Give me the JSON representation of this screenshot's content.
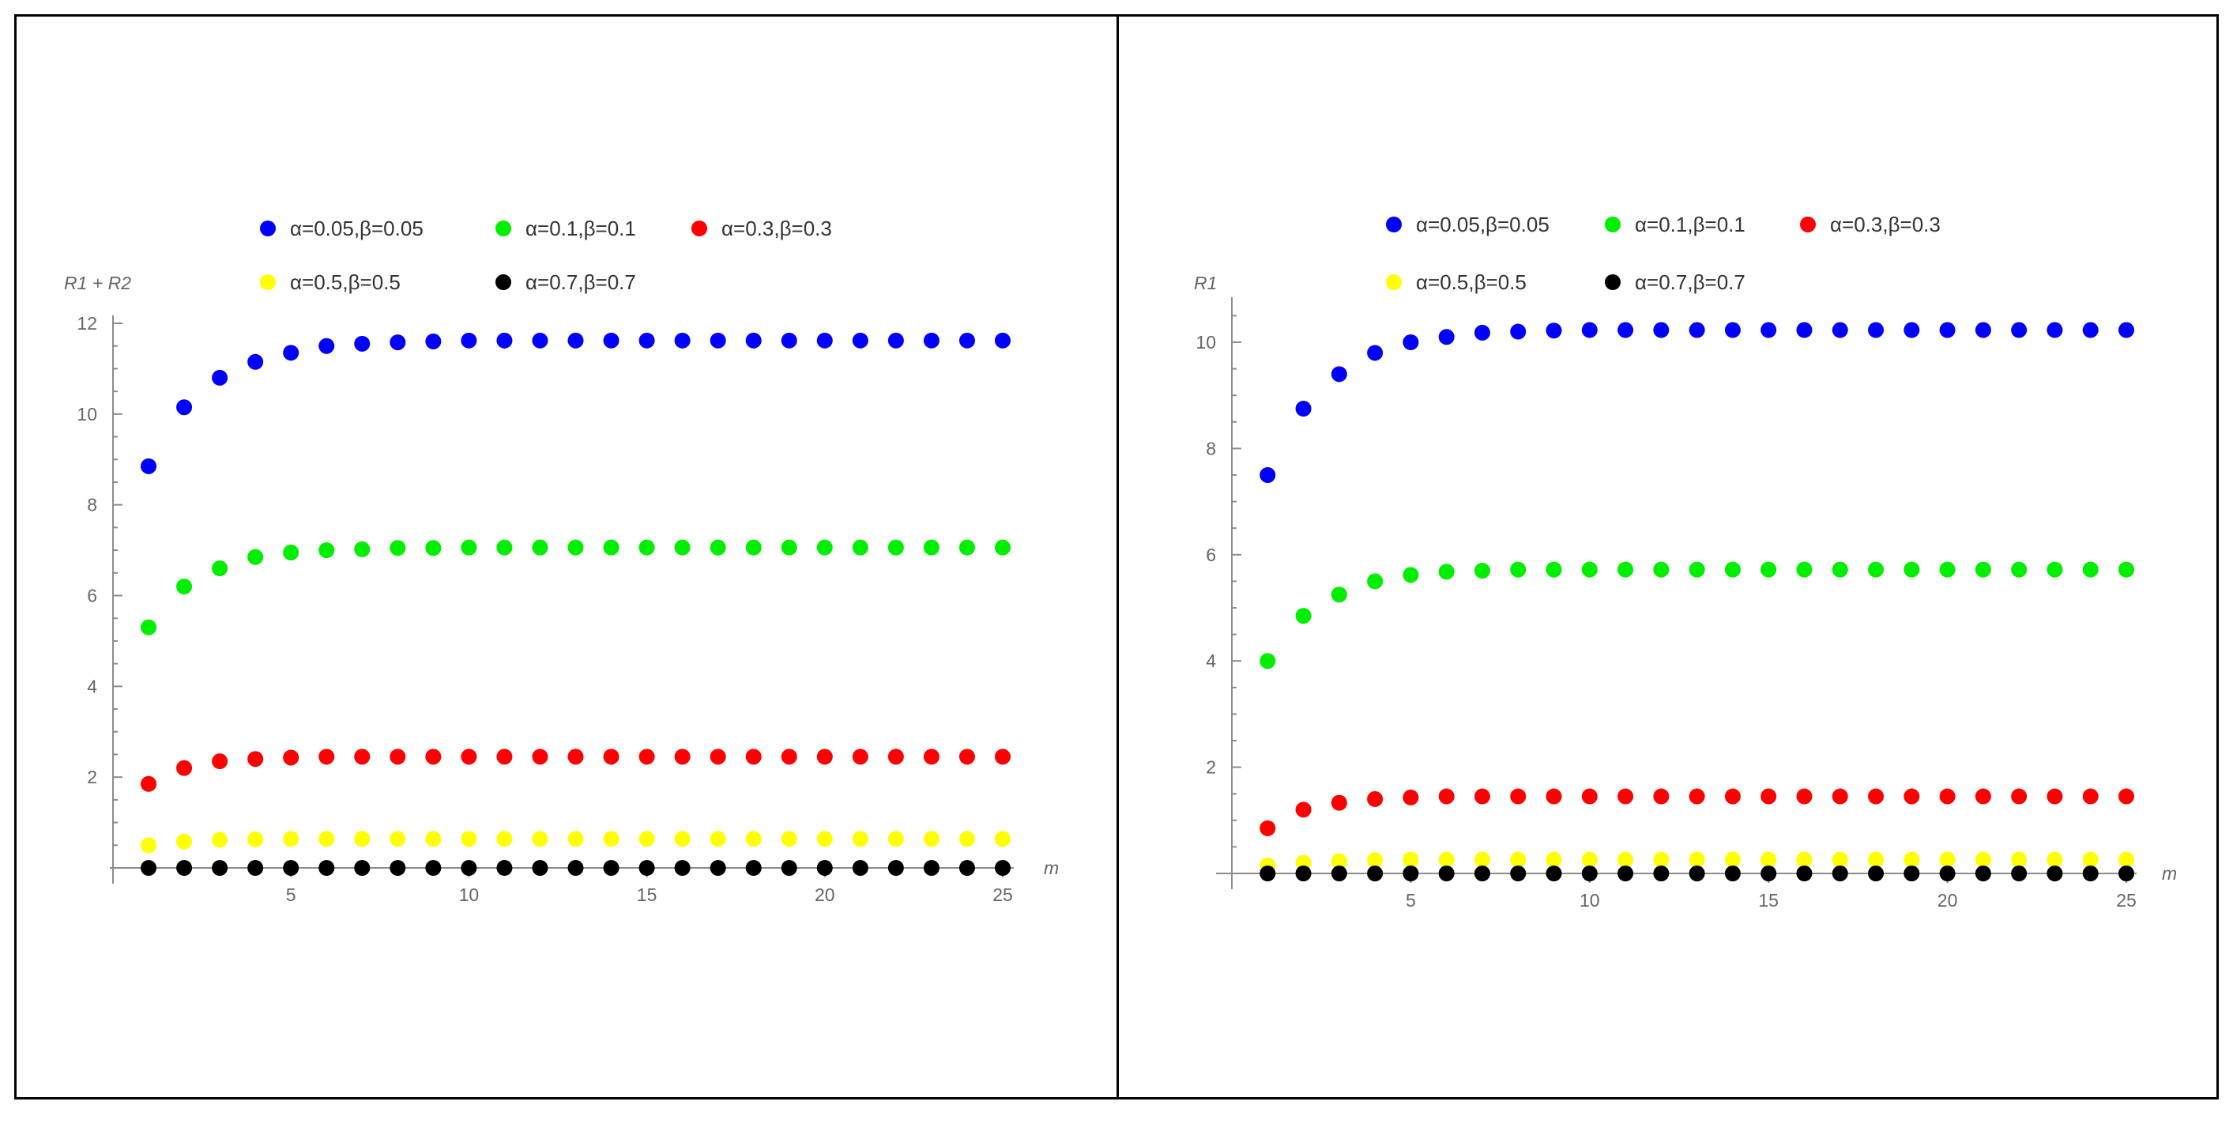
{
  "chart_data": [
    {
      "type": "scatter",
      "ylabel": "R1 + R2",
      "xlabel": "m",
      "xlim": [
        0,
        25.5
      ],
      "ylim": [
        0,
        12
      ],
      "xticks": [
        5,
        10,
        15,
        20,
        25
      ],
      "yticks": [
        2,
        4,
        6,
        8,
        10,
        12
      ],
      "legend_position": "top",
      "x": [
        1,
        2,
        3,
        4,
        5,
        6,
        7,
        8,
        9,
        10,
        11,
        12,
        13,
        14,
        15,
        16,
        17,
        18,
        19,
        20,
        21,
        22,
        23,
        24,
        25
      ],
      "series": [
        {
          "name": "α=0.05,β=0.05",
          "color": "#0000ff",
          "values": [
            8.85,
            10.15,
            10.8,
            11.15,
            11.35,
            11.5,
            11.55,
            11.58,
            11.6,
            11.62,
            11.62,
            11.62,
            11.62,
            11.62,
            11.62,
            11.62,
            11.62,
            11.62,
            11.62,
            11.62,
            11.62,
            11.62,
            11.62,
            11.62,
            11.62
          ]
        },
        {
          "name": "α=0.1,β=0.1",
          "color": "#00ee00",
          "values": [
            5.3,
            6.2,
            6.6,
            6.85,
            6.95,
            7.0,
            7.02,
            7.05,
            7.05,
            7.06,
            7.06,
            7.06,
            7.06,
            7.06,
            7.06,
            7.06,
            7.06,
            7.06,
            7.06,
            7.06,
            7.06,
            7.06,
            7.06,
            7.06,
            7.06
          ]
        },
        {
          "name": "α=0.3,β=0.3",
          "color": "#ff0000",
          "values": [
            1.85,
            2.2,
            2.35,
            2.4,
            2.43,
            2.45,
            2.45,
            2.45,
            2.45,
            2.45,
            2.45,
            2.45,
            2.45,
            2.45,
            2.45,
            2.45,
            2.45,
            2.45,
            2.45,
            2.45,
            2.45,
            2.45,
            2.45,
            2.45,
            2.45
          ]
        },
        {
          "name": "α=0.5,β=0.5",
          "color": "#ffff00",
          "values": [
            0.5,
            0.58,
            0.62,
            0.63,
            0.64,
            0.64,
            0.64,
            0.64,
            0.64,
            0.64,
            0.64,
            0.64,
            0.64,
            0.64,
            0.64,
            0.64,
            0.64,
            0.64,
            0.64,
            0.64,
            0.64,
            0.64,
            0.64,
            0.64,
            0.64
          ]
        },
        {
          "name": "α=0.7,β=0.7",
          "color": "#000000",
          "values": [
            0,
            0,
            0,
            0,
            0,
            0,
            0,
            0,
            0,
            0,
            0,
            0,
            0,
            0,
            0,
            0,
            0,
            0,
            0,
            0,
            0,
            0,
            0,
            0,
            0
          ]
        }
      ]
    },
    {
      "type": "scatter",
      "ylabel": "R1",
      "xlabel": "m",
      "xlim": [
        0,
        25.5
      ],
      "ylim": [
        0,
        10.7
      ],
      "xticks": [
        5,
        10,
        15,
        20,
        25
      ],
      "yticks": [
        2,
        4,
        6,
        8,
        10
      ],
      "legend_position": "top",
      "x": [
        1,
        2,
        3,
        4,
        5,
        6,
        7,
        8,
        9,
        10,
        11,
        12,
        13,
        14,
        15,
        16,
        17,
        18,
        19,
        20,
        21,
        22,
        23,
        24,
        25
      ],
      "series": [
        {
          "name": "α=0.05,β=0.05",
          "color": "#0000ff",
          "values": [
            7.5,
            8.75,
            9.4,
            9.8,
            10.0,
            10.1,
            10.18,
            10.2,
            10.22,
            10.23,
            10.23,
            10.23,
            10.23,
            10.23,
            10.23,
            10.23,
            10.23,
            10.23,
            10.23,
            10.23,
            10.23,
            10.23,
            10.23,
            10.23,
            10.23
          ]
        },
        {
          "name": "α=0.1,β=0.1",
          "color": "#00ee00",
          "values": [
            4.0,
            4.85,
            5.25,
            5.5,
            5.62,
            5.68,
            5.7,
            5.72,
            5.72,
            5.72,
            5.72,
            5.72,
            5.72,
            5.72,
            5.72,
            5.72,
            5.72,
            5.72,
            5.72,
            5.72,
            5.72,
            5.72,
            5.72,
            5.72,
            5.72
          ]
        },
        {
          "name": "α=0.3,β=0.3",
          "color": "#ff0000",
          "values": [
            0.85,
            1.2,
            1.33,
            1.4,
            1.43,
            1.45,
            1.45,
            1.45,
            1.45,
            1.45,
            1.45,
            1.45,
            1.45,
            1.45,
            1.45,
            1.45,
            1.45,
            1.45,
            1.45,
            1.45,
            1.45,
            1.45,
            1.45,
            1.45,
            1.45
          ]
        },
        {
          "name": "α=0.5,β=0.5",
          "color": "#ffff00",
          "values": [
            0.15,
            0.2,
            0.23,
            0.25,
            0.26,
            0.26,
            0.26,
            0.26,
            0.26,
            0.26,
            0.26,
            0.26,
            0.26,
            0.26,
            0.26,
            0.26,
            0.26,
            0.26,
            0.26,
            0.26,
            0.26,
            0.26,
            0.26,
            0.26,
            0.26
          ]
        },
        {
          "name": "α=0.7,β=0.7",
          "color": "#000000",
          "values": [
            0,
            0,
            0,
            0,
            0,
            0,
            0,
            0,
            0,
            0,
            0,
            0,
            0,
            0,
            0,
            0,
            0,
            0,
            0,
            0,
            0,
            0,
            0,
            0,
            0
          ]
        }
      ]
    }
  ]
}
